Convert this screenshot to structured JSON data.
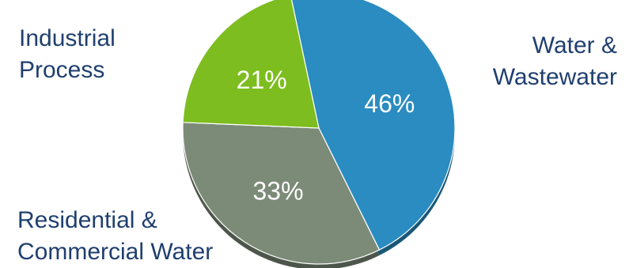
{
  "chart_data": {
    "type": "pie",
    "title": "",
    "slices": [
      {
        "label_lines": [
          "Water &",
          "Wastewater"
        ],
        "value": 46,
        "value_label": "46%",
        "color": "#2a8cc0"
      },
      {
        "label_lines": [
          "Residential &",
          "Commercial Water"
        ],
        "value": 33,
        "value_label": "33%",
        "color": "#7c8b78"
      },
      {
        "label_lines": [
          "Industrial",
          "Process"
        ],
        "value": 21,
        "value_label": "21%",
        "color": "#7dbd1f"
      }
    ],
    "legend": "none",
    "label_color": "#1f3f6e"
  }
}
